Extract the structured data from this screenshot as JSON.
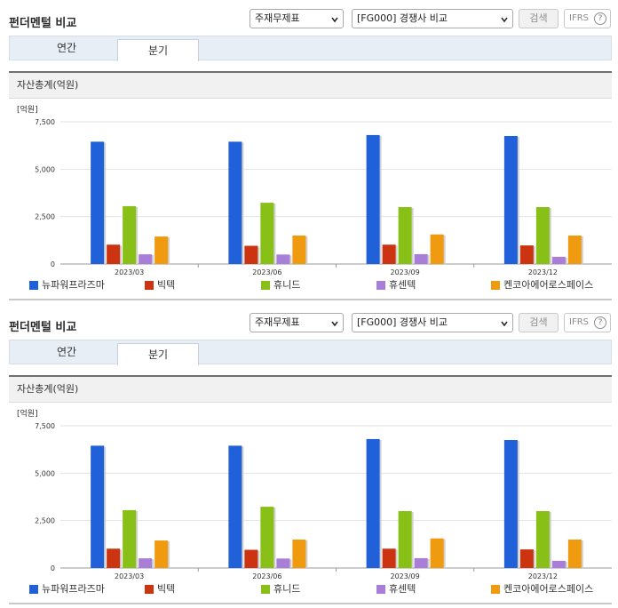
{
  "header": {
    "title": "펀더멘털 비교",
    "select_1": "주재무제표",
    "select_2": "[FG000] 경쟁사 비교",
    "search_label": "검색",
    "ifrs_label": "IFRS",
    "help_glyph": "?"
  },
  "tabs": [
    {
      "label": "연간"
    },
    {
      "label": "분기"
    }
  ],
  "chart_header": "자산총계(억원)",
  "colors": {
    "series": [
      "#2060d8",
      "#cc3310",
      "#88c018",
      "#a87ed8",
      "#f09a10"
    ]
  },
  "chart_data": {
    "type": "bar",
    "unit_label": "[억원]",
    "categories": [
      "2023/03",
      "2023/06",
      "2023/09",
      "2023/12"
    ],
    "ylim": [
      0,
      7500
    ],
    "yticks": [
      0,
      2500,
      5000,
      7500
    ],
    "ytick_labels": [
      "0",
      "2,500",
      "5,000",
      "7,500"
    ],
    "grid": true,
    "legend_position": "bottom",
    "series": [
      {
        "name": "뉴파워프라즈마",
        "values": [
          6450,
          6450,
          6800,
          6750
        ]
      },
      {
        "name": "빅텍",
        "values": [
          1020,
          960,
          1020,
          980
        ]
      },
      {
        "name": "휴니드",
        "values": [
          3050,
          3230,
          3000,
          3000
        ]
      },
      {
        "name": "휴센텍",
        "values": [
          510,
          500,
          520,
          380
        ]
      },
      {
        "name": "켄코아에어로스페이스",
        "values": [
          1450,
          1500,
          1560,
          1500
        ]
      }
    ]
  }
}
